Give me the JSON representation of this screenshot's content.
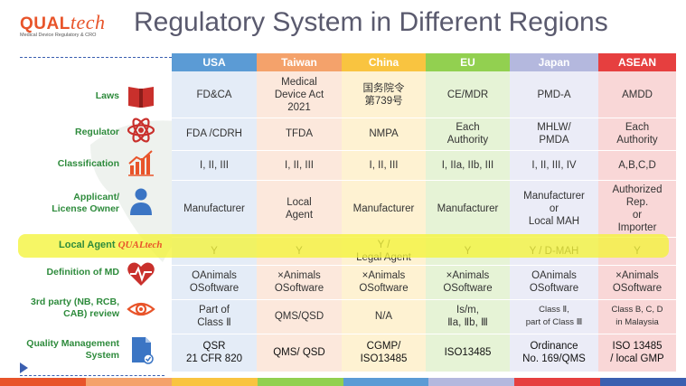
{
  "header": {
    "logo_main": "QUAL",
    "logo_tech": "tech",
    "logo_sub": "Medical Device Regulatory & CRO",
    "title": "Regulatory System in Different Regions"
  },
  "row_labels": {
    "laws": "Laws",
    "regulator": "Regulator",
    "classification": "Classification",
    "applicant": "Applicant/\nLicense Owner",
    "local_agent": "Local Agent",
    "definition": "Definition of MD",
    "third_party": "3rd party (NB, RCB,\nCAB) review",
    "qms": "Quality Management\nSystem"
  },
  "local_agent_logo": "QUALtech",
  "columns": [
    {
      "name": "USA",
      "color": "#5b9bd5",
      "cells": [
        "FD&CA",
        "FDA /CDRH",
        "I, II, III",
        "Manufacturer",
        "Y",
        "OAnimals\nOSoftware",
        "Part of\nClass Ⅱ",
        "QSR\n21 CFR 820"
      ]
    },
    {
      "name": "Taiwan",
      "color": "#f4a26b",
      "cells": [
        "Medical\nDevice Act\n2021",
        "TFDA",
        "I, II, III",
        "Local\nAgent",
        "Y",
        "×Animals\nOSoftware",
        "QMS/QSD",
        "QMS/ QSD"
      ]
    },
    {
      "name": "China",
      "color": "#f9c440",
      "cells": [
        "国务院令\n第739号",
        "NMPA",
        "I, II, III",
        "Manufacturer",
        "Y /\nLegal Agent",
        "×Animals\nOSoftware",
        "N/A",
        "CGMP/\nISO13485"
      ]
    },
    {
      "name": "EU",
      "color": "#92d050",
      "cells": [
        "CE/MDR",
        "Each\nAuthority",
        "I, IIa, IIb, III",
        "Manufacturer",
        "Y",
        "×Animals\nOSoftware",
        "Is/m,\nⅡa, Ⅱb, Ⅲ",
        "ISO13485"
      ]
    },
    {
      "name": "Japan",
      "color": "#b4b8de",
      "cells": [
        "PMD-A",
        "MHLW/\nPMDA",
        "I, II, III, IV",
        "Manufacturer\nor\nLocal MAH",
        "Y / D-MAH",
        "OAnimals\nOSoftware",
        "Class Ⅱ,\npart of Class Ⅲ",
        "Ordinance\nNo. 169/QMS"
      ]
    },
    {
      "name": "ASEAN",
      "color": "#e63f3f",
      "cells": [
        "AMDD",
        "Each\nAuthority",
        "A,B,C,D",
        "Authorized\nRep.\nor\nImporter",
        "Y",
        "×Animals\nOSoftware",
        "Class B, C, D\nin Malaysia",
        "ISO 13485\n/ local GMP"
      ]
    }
  ],
  "column_bg": [
    "#e4ecf7",
    "#fce8dc",
    "#fef2d2",
    "#e6f3d6",
    "#ebecf7",
    "#f9d7d7"
  ],
  "bottom_bar_colors": [
    "#e8542a",
    "#f4a26b",
    "#f9c440",
    "#92d050",
    "#5b9bd5",
    "#b4b8de",
    "#e63f3f",
    "#3b5fb0"
  ]
}
